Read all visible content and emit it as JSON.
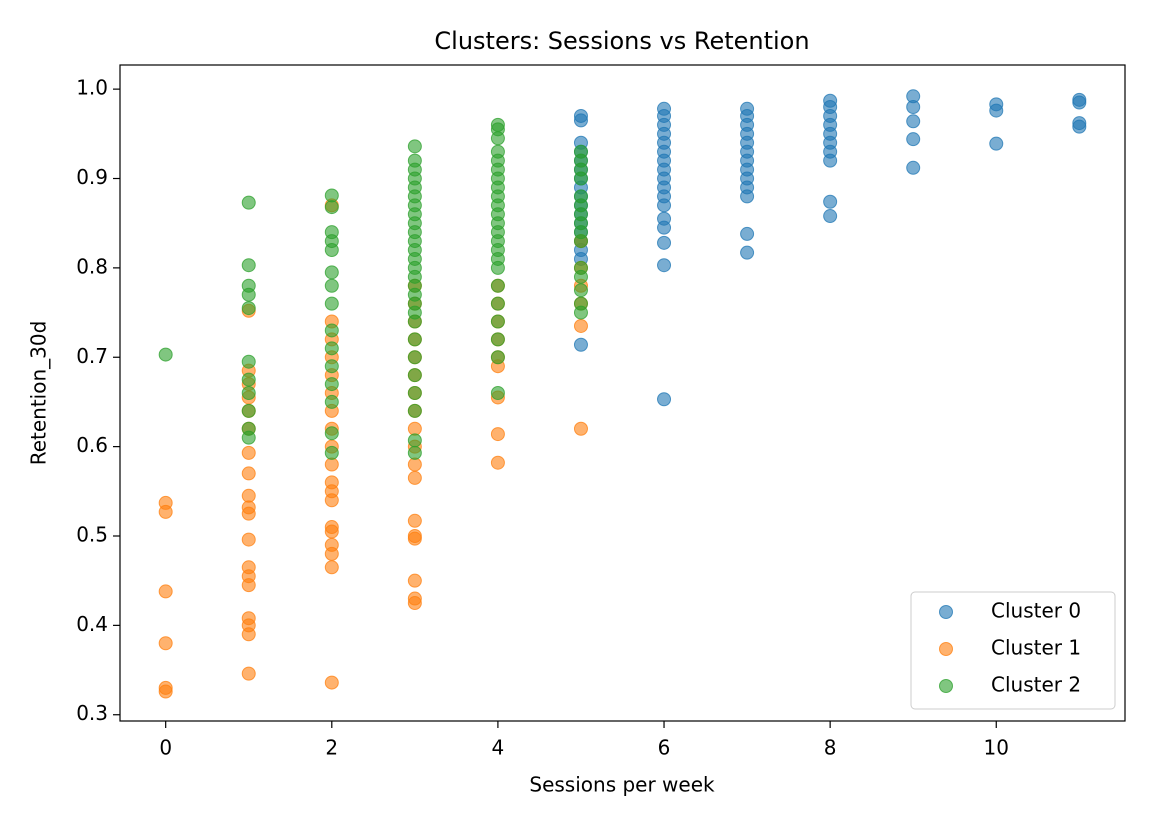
{
  "chart_data": {
    "type": "scatter",
    "title": "Clusters: Sessions vs Retention",
    "x_label": "Sessions per week",
    "y_label": "Retention_30d",
    "xlim": [
      -0.55,
      11.55
    ],
    "xticks": [
      0,
      2,
      4,
      6,
      8,
      10
    ],
    "ylim": [
      0.293,
      1.027
    ],
    "yticks": [
      0.3,
      0.4,
      0.5,
      0.6,
      0.7,
      0.8,
      0.9,
      {
        "value": 1,
        "label": "1.0"
      }
    ],
    "grid": false,
    "legend": "lower right",
    "series": [
      {
        "name": "Cluster 0",
        "color": "#1f77b4",
        "x": [
          5,
          5,
          5,
          5,
          5,
          5,
          5,
          5,
          5,
          5,
          5,
          5,
          5,
          5,
          5,
          5,
          5,
          6,
          6,
          6,
          6,
          6,
          6,
          6,
          6,
          6,
          6,
          6,
          6,
          6,
          6,
          6,
          6,
          6,
          7,
          7,
          7,
          7,
          7,
          7,
          7,
          7,
          7,
          7,
          7,
          7,
          7,
          8,
          8,
          8,
          8,
          8,
          8,
          8,
          8,
          8,
          8,
          9,
          9,
          9,
          9,
          9,
          10,
          10,
          10,
          11,
          11,
          11,
          11
        ],
        "values": [
          0.97,
          0.965,
          0.94,
          0.93,
          0.92,
          0.91,
          0.9,
          0.89,
          0.88,
          0.87,
          0.86,
          0.85,
          0.84,
          0.83,
          0.82,
          0.81,
          0.714,
          0.978,
          0.97,
          0.96,
          0.95,
          0.94,
          0.93,
          0.92,
          0.91,
          0.9,
          0.89,
          0.88,
          0.87,
          0.855,
          0.845,
          0.828,
          0.803,
          0.653,
          0.978,
          0.97,
          0.96,
          0.95,
          0.94,
          0.93,
          0.92,
          0.91,
          0.9,
          0.89,
          0.88,
          0.838,
          0.817,
          0.987,
          0.98,
          0.97,
          0.96,
          0.95,
          0.94,
          0.93,
          0.92,
          0.874,
          0.858,
          0.992,
          0.98,
          0.964,
          0.944,
          0.912,
          0.983,
          0.976,
          0.939,
          0.988,
          0.985,
          0.962,
          0.958
        ]
      },
      {
        "name": "Cluster 1",
        "color": "#ff7f0e",
        "x": [
          0,
          0,
          0,
          0,
          0,
          0,
          1,
          1,
          1,
          1,
          1,
          1,
          1,
          1,
          1,
          1,
          1,
          1,
          1,
          1,
          1,
          1,
          1,
          1,
          1,
          2,
          2,
          2,
          2,
          2,
          2,
          2,
          2,
          2,
          2,
          2,
          2,
          2,
          2,
          2,
          2,
          2,
          2,
          2,
          3,
          3,
          3,
          3,
          3,
          3,
          3,
          3,
          3,
          3,
          3,
          3,
          3,
          3,
          3,
          3,
          3,
          3,
          4,
          4,
          4,
          4,
          4,
          4,
          4,
          4,
          4,
          5,
          5,
          5,
          5,
          5,
          5
        ],
        "values": [
          0.537,
          0.527,
          0.438,
          0.38,
          0.33,
          0.326,
          0.752,
          0.685,
          0.67,
          0.655,
          0.64,
          0.62,
          0.593,
          0.57,
          0.545,
          0.532,
          0.525,
          0.496,
          0.465,
          0.455,
          0.445,
          0.408,
          0.4,
          0.39,
          0.346,
          0.87,
          0.74,
          0.72,
          0.7,
          0.68,
          0.66,
          0.64,
          0.62,
          0.6,
          0.58,
          0.56,
          0.55,
          0.54,
          0.51,
          0.505,
          0.49,
          0.48,
          0.465,
          0.336,
          0.78,
          0.76,
          0.74,
          0.72,
          0.7,
          0.68,
          0.66,
          0.64,
          0.62,
          0.6,
          0.58,
          0.565,
          0.517,
          0.5,
          0.497,
          0.45,
          0.43,
          0.425,
          0.78,
          0.76,
          0.74,
          0.72,
          0.7,
          0.69,
          0.655,
          0.614,
          0.582,
          0.83,
          0.8,
          0.78,
          0.76,
          0.735,
          0.62
        ]
      },
      {
        "name": "Cluster 2",
        "color": "#2ca02c",
        "x": [
          0,
          1,
          1,
          1,
          1,
          1,
          1,
          1,
          1,
          1,
          1,
          1,
          2,
          2,
          2,
          2,
          2,
          2,
          2,
          2,
          2,
          2,
          2,
          2,
          2,
          2,
          2,
          3,
          3,
          3,
          3,
          3,
          3,
          3,
          3,
          3,
          3,
          3,
          3,
          3,
          3,
          3,
          3,
          3,
          3,
          3,
          3,
          3,
          3,
          3,
          3,
          3,
          3,
          3,
          4,
          4,
          4,
          4,
          4,
          4,
          4,
          4,
          4,
          4,
          4,
          4,
          4,
          4,
          4,
          4,
          4,
          4,
          4,
          4,
          4,
          4,
          4,
          5,
          5,
          5,
          5,
          5,
          5,
          5,
          5,
          5,
          5,
          5,
          5,
          5,
          5,
          5
        ],
        "values": [
          0.703,
          0.873,
          0.803,
          0.78,
          0.77,
          0.755,
          0.695,
          0.675,
          0.66,
          0.64,
          0.62,
          0.61,
          0.881,
          0.868,
          0.84,
          0.83,
          0.82,
          0.795,
          0.78,
          0.76,
          0.73,
          0.71,
          0.69,
          0.67,
          0.65,
          0.615,
          0.593,
          0.936,
          0.92,
          0.91,
          0.9,
          0.89,
          0.88,
          0.87,
          0.86,
          0.85,
          0.84,
          0.83,
          0.82,
          0.81,
          0.8,
          0.79,
          0.78,
          0.77,
          0.76,
          0.75,
          0.74,
          0.72,
          0.7,
          0.68,
          0.66,
          0.64,
          0.607,
          0.593,
          0.96,
          0.955,
          0.945,
          0.93,
          0.92,
          0.91,
          0.9,
          0.89,
          0.88,
          0.87,
          0.86,
          0.85,
          0.84,
          0.83,
          0.82,
          0.81,
          0.8,
          0.78,
          0.76,
          0.74,
          0.72,
          0.7,
          0.66,
          0.93,
          0.92,
          0.91,
          0.9,
          0.88,
          0.87,
          0.86,
          0.85,
          0.84,
          0.83,
          0.8,
          0.79,
          0.775,
          0.76,
          0.75
        ]
      }
    ]
  }
}
